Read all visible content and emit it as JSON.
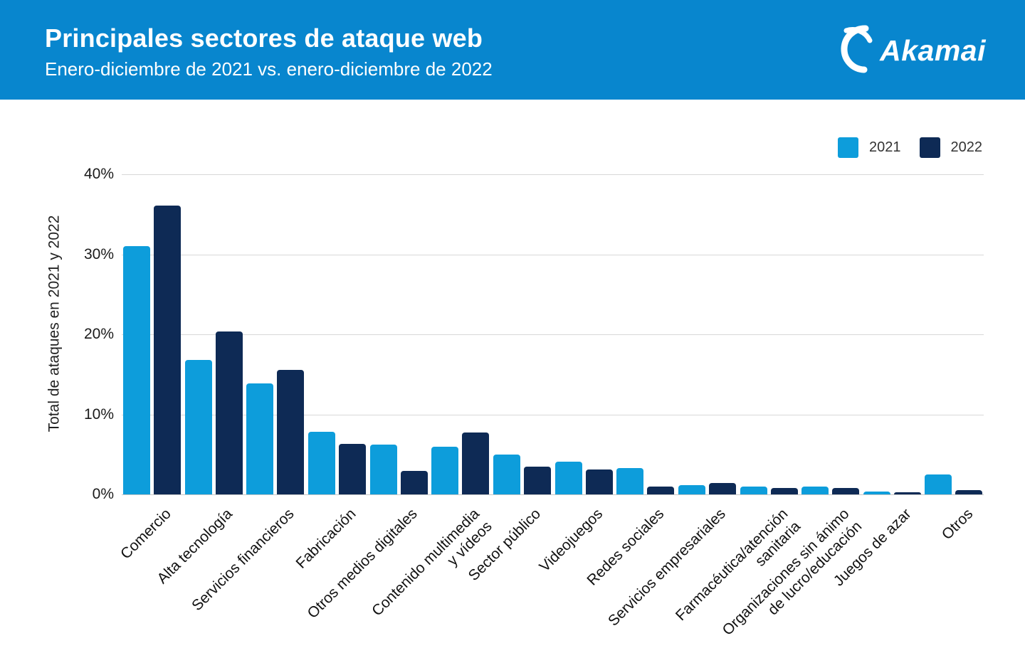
{
  "header": {
    "title": "Principales sectores de ataque web",
    "subtitle": "Enero-diciembre de 2021 vs. enero-diciembre de 2022",
    "logo_text": "Akamai",
    "background_color": "#0886CE",
    "text_color": "#ffffff"
  },
  "legend": [
    {
      "label": "2021",
      "color": "#0D9DDB"
    },
    {
      "label": "2022",
      "color": "#0E2A55"
    }
  ],
  "chart_data": {
    "type": "bar",
    "title": "Principales sectores de ataque web",
    "subtitle": "Enero-diciembre de 2021 vs. enero-diciembre de 2022",
    "xlabel": "",
    "ylabel": "Total de ataques en 2021 y 2022",
    "ylim": [
      0,
      40
    ],
    "yticks": [
      0,
      10,
      20,
      30,
      40
    ],
    "ytick_suffix": "%",
    "grid": true,
    "legend_position": "top-right",
    "categories": [
      "Comercio",
      "Alta tecnología",
      "Servicios financieros",
      "Fabricación",
      "Otros medios digitales",
      "Contenido multimedia\ny vídeos",
      "Sector público",
      "Videojuegos",
      "Redes sociales",
      "Servicios empresariales",
      "Farmacéutica/atención\nsanitaria",
      "Organizaciones sin ánimo\nde lucro/educación",
      "Juegos de azar",
      "Otros"
    ],
    "series": [
      {
        "name": "2021",
        "color": "#0D9DDB",
        "values": [
          31.0,
          16.8,
          13.9,
          7.8,
          6.2,
          6.0,
          5.0,
          4.1,
          3.3,
          1.2,
          1.0,
          1.0,
          0.4,
          2.5
        ]
      },
      {
        "name": "2022",
        "color": "#0E2A55",
        "values": [
          36.1,
          20.4,
          15.6,
          6.3,
          2.9,
          7.7,
          3.5,
          3.1,
          1.0,
          1.4,
          0.8,
          0.8,
          0.3,
          0.5
        ]
      }
    ]
  }
}
